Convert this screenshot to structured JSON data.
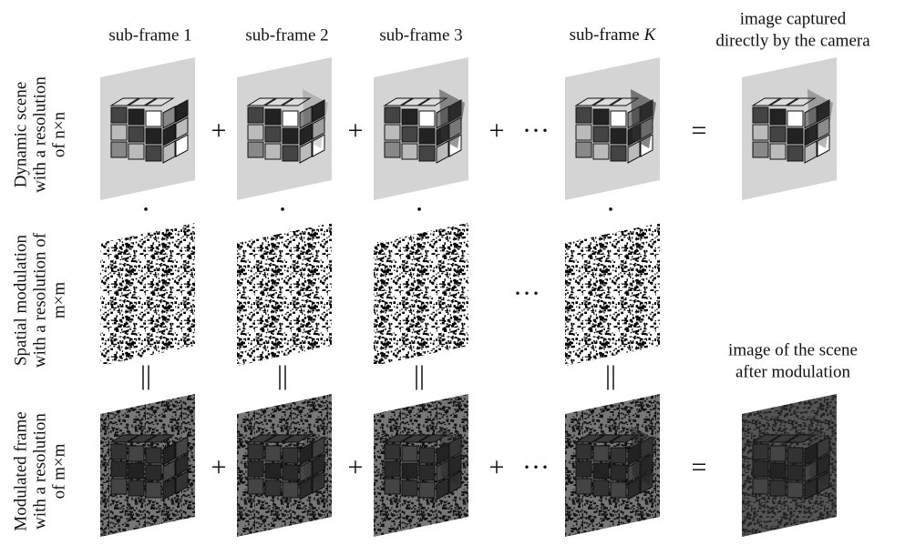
{
  "column_headers": [
    "sub-frame 1",
    "sub-frame 2",
    "sub-frame 3"
  ],
  "last_column_header": {
    "text": "sub-frame",
    "variable": "K"
  },
  "result_labels": {
    "captured": [
      "image captured",
      "directly by the camera"
    ],
    "modulated": [
      "image of the scene",
      "after modulation"
    ]
  },
  "row_labels": [
    [
      "Dynamic scene",
      "with a resolution",
      "of n×n"
    ],
    [
      "Spatial modulation",
      "with a resolution of",
      "m×m"
    ],
    [
      "Modulated frame",
      "with a resolution",
      "of m×m"
    ]
  ],
  "operators": {
    "plus": "+",
    "equals": "=",
    "ellipsis": "···",
    "dot": "•",
    "parallel": "||"
  }
}
